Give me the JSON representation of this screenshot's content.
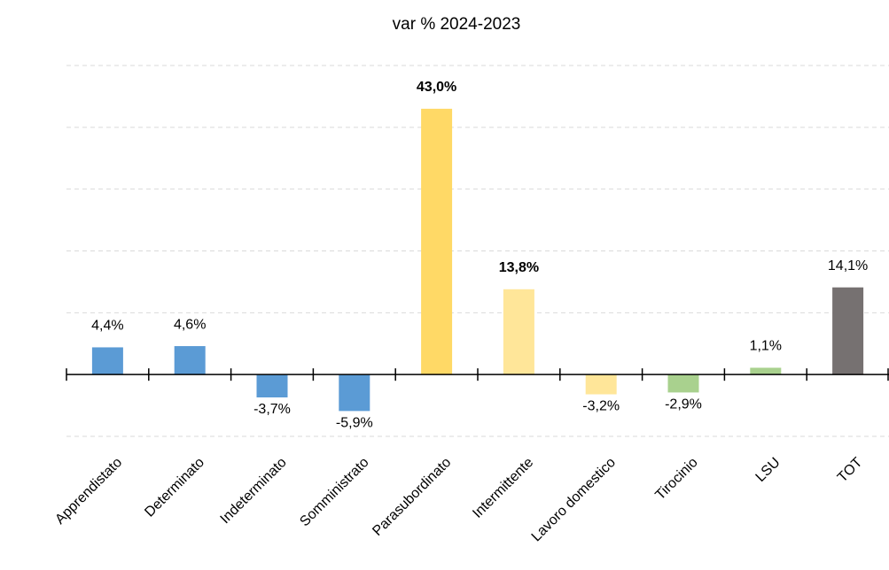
{
  "chart_data": {
    "type": "bar",
    "title": "var % 2024-2023",
    "categories": [
      "Apprendistato",
      "Determinato",
      "Indeterminato",
      "Somministrato",
      "Parasubordinato",
      "Intermittente",
      "Lavoro domestico",
      "Tirocinio",
      "LSU",
      "TOT"
    ],
    "values": [
      4.4,
      4.6,
      -3.7,
      -5.9,
      43.0,
      13.8,
      -3.2,
      -2.9,
      1.1,
      14.1
    ],
    "value_labels": [
      "4,4%",
      "4,6%",
      "-3,7%",
      "-5,9%",
      "43,0%",
      "13,8%",
      "-3,2%",
      "-2,9%",
      "1,1%",
      "14,1%"
    ],
    "colors": [
      "#5b9bd5",
      "#5b9bd5",
      "#5b9bd5",
      "#5b9bd5",
      "#ffd966",
      "#ffe699",
      "#ffe699",
      "#a9d18e",
      "#a9d18e",
      "#767171"
    ],
    "value_label_colors": [
      "#000000",
      "#000000",
      "#000000",
      "#000000",
      "#ff0000",
      "#ff0000",
      "#000000",
      "#000000",
      "#000000",
      "#000000"
    ],
    "ylim": [
      -10,
      50
    ],
    "yticks": [
      -10,
      0,
      10,
      20,
      30,
      40,
      50
    ],
    "grid": true
  }
}
